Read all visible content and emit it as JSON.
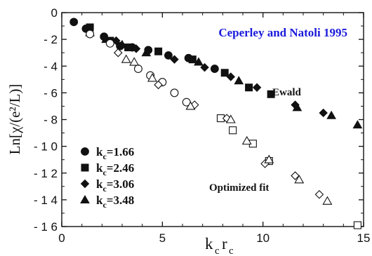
{
  "chart_data": {
    "type": "scatter",
    "title": "Ceperley and Natoli 1995",
    "xlabel": "k",
    "xlabel_sub": "c",
    "xlabel2": "r",
    "xlabel2_sub": "c",
    "ylabel": "Ln[χ/(e²/L)]",
    "xlim": [
      0,
      15
    ],
    "ylim": [
      -16,
      0
    ],
    "xticks": [
      "0",
      "5",
      "10",
      "15"
    ],
    "yticks": [
      "0",
      "- 2",
      "- 4",
      "- 6",
      "- 8",
      "- 1 0",
      "- 1 2",
      "- 1 4",
      "- 1 6"
    ],
    "annotations": {
      "ewald": "Ewald",
      "optimized": "Optimized fit"
    },
    "legend": {
      "position": "bottom-left",
      "entries": [
        {
          "label": "k",
          "sub": "c",
          "value": "=1.66",
          "marker": "circle"
        },
        {
          "label": "k",
          "sub": "c",
          "value": "=2.46",
          "marker": "square"
        },
        {
          "label": "k",
          "sub": "c",
          "value": "=3.06",
          "marker": "diamond"
        },
        {
          "label": "k",
          "sub": "c",
          "value": "=3.48",
          "marker": "triangle"
        }
      ]
    },
    "series": [
      {
        "group": "Ewald",
        "kc": "1.66",
        "marker": "circle",
        "filled": true,
        "points": [
          [
            0.6,
            -0.7
          ],
          [
            1.2,
            -1.2
          ],
          [
            2.1,
            -1.8
          ],
          [
            2.9,
            -2.5
          ],
          [
            3.5,
            -2.6
          ],
          [
            4.3,
            -2.8
          ],
          [
            5.3,
            -3.2
          ],
          [
            6.3,
            -3.4
          ],
          [
            7.6,
            -4.2
          ]
        ]
      },
      {
        "group": "Ewald",
        "kc": "2.46",
        "marker": "square",
        "filled": true,
        "points": [
          [
            1.4,
            -1.1
          ],
          [
            2.4,
            -2.1
          ],
          [
            3.3,
            -2.6
          ],
          [
            4.8,
            -2.9
          ],
          [
            6.5,
            -3.5
          ],
          [
            8.1,
            -4.5
          ],
          [
            9.3,
            -5.6
          ],
          [
            10.4,
            -6.1
          ]
        ]
      },
      {
        "group": "Ewald",
        "kc": "3.06",
        "marker": "diamond",
        "filled": true,
        "points": [
          [
            2.7,
            -2.1
          ],
          [
            3.7,
            -2.7
          ],
          [
            5.6,
            -3.5
          ],
          [
            7.1,
            -4.1
          ],
          [
            8.4,
            -4.8
          ],
          [
            9.7,
            -5.6
          ],
          [
            11.6,
            -6.9
          ],
          [
            13.0,
            -7.5
          ]
        ]
      },
      {
        "group": "Ewald",
        "kc": "3.48",
        "marker": "triangle",
        "filled": true,
        "points": [
          [
            1.4,
            -1.5
          ],
          [
            2.2,
            -2.0
          ],
          [
            3.0,
            -2.4
          ],
          [
            4.2,
            -3.0
          ],
          [
            6.8,
            -3.7
          ],
          [
            8.8,
            -5.1
          ],
          [
            11.7,
            -7.1
          ],
          [
            13.4,
            -7.7
          ],
          [
            14.7,
            -8.4
          ]
        ]
      },
      {
        "group": "Optimized fit",
        "kc": "1.66",
        "marker": "circle",
        "filled": false,
        "points": [
          [
            1.4,
            -1.6
          ],
          [
            2.4,
            -2.3
          ],
          [
            3.8,
            -4.2
          ],
          [
            4.4,
            -4.7
          ],
          [
            5.0,
            -5.2
          ],
          [
            5.6,
            -6.0
          ],
          [
            6.2,
            -6.7
          ]
        ]
      },
      {
        "group": "Optimized fit",
        "kc": "2.46",
        "marker": "square",
        "filled": false,
        "points": [
          [
            7.9,
            -7.9
          ],
          [
            8.5,
            -8.8
          ],
          [
            9.5,
            -9.8
          ],
          [
            10.3,
            -11.1
          ],
          [
            14.7,
            -15.9
          ]
        ]
      },
      {
        "group": "Optimized fit",
        "kc": "3.06",
        "marker": "diamond",
        "filled": false,
        "points": [
          [
            2.8,
            -3.0
          ],
          [
            4.8,
            -5.4
          ],
          [
            6.6,
            -6.9
          ],
          [
            8.2,
            -7.9
          ],
          [
            10.1,
            -11.3
          ],
          [
            11.6,
            -12.2
          ],
          [
            12.8,
            -13.6
          ]
        ]
      },
      {
        "group": "Optimized fit",
        "kc": "3.48",
        "marker": "triangle",
        "filled": false,
        "points": [
          [
            3.2,
            -3.5
          ],
          [
            3.6,
            -3.7
          ],
          [
            4.5,
            -4.9
          ],
          [
            6.4,
            -7.0
          ],
          [
            8.4,
            -8.0
          ],
          [
            9.2,
            -9.6
          ],
          [
            10.3,
            -11.0
          ],
          [
            11.8,
            -12.5
          ],
          [
            13.2,
            -14.1
          ]
        ]
      }
    ]
  }
}
